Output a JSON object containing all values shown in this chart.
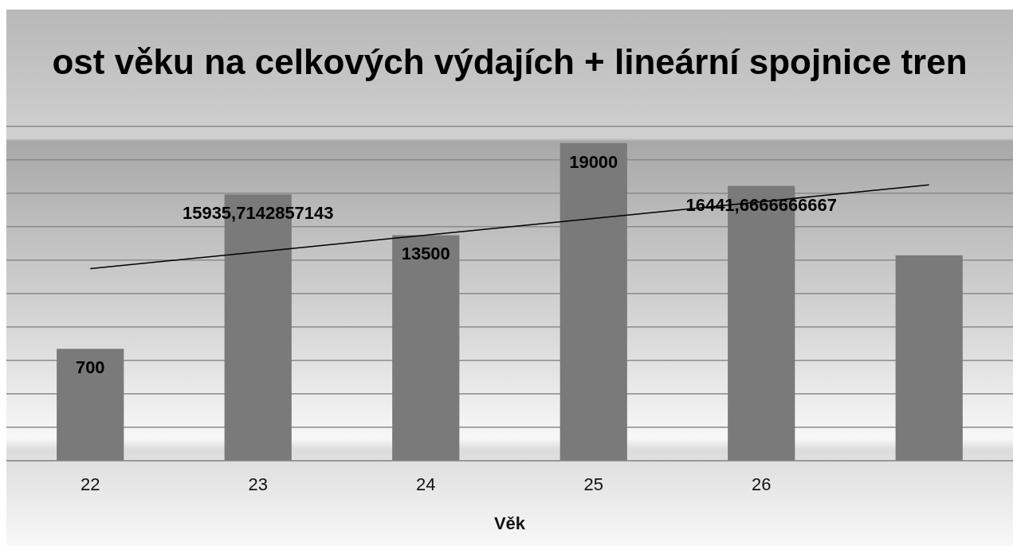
{
  "chart_data": {
    "type": "bar",
    "title": "ost věku na celkových výdajích + lineární spojnice tren",
    "xlabel": "Věk",
    "categories": [
      "22",
      "23",
      "24",
      "25",
      "26",
      null
    ],
    "series": [
      {
        "color": "#7a7a7a",
        "values": [
          6700,
          15935.7142857143,
          13500,
          19000,
          16441.6666666667,
          12300
        ],
        "value_labels": [
          null,
          "15935,7142857143",
          "13500",
          "19000",
          "16441,6666666667",
          null
        ]
      },
      {
        "type": "line",
        "color": "#000000",
        "values": [
          11500,
          12500,
          13500,
          14500,
          15500,
          16500
        ]
      }
    ],
    "annotations": [
      {
        "text": "700",
        "x": "22",
        "y": 6700
      }
    ],
    "tick_labels": "x",
    "grid": "y",
    "legend": false,
    "marker": "none"
  }
}
